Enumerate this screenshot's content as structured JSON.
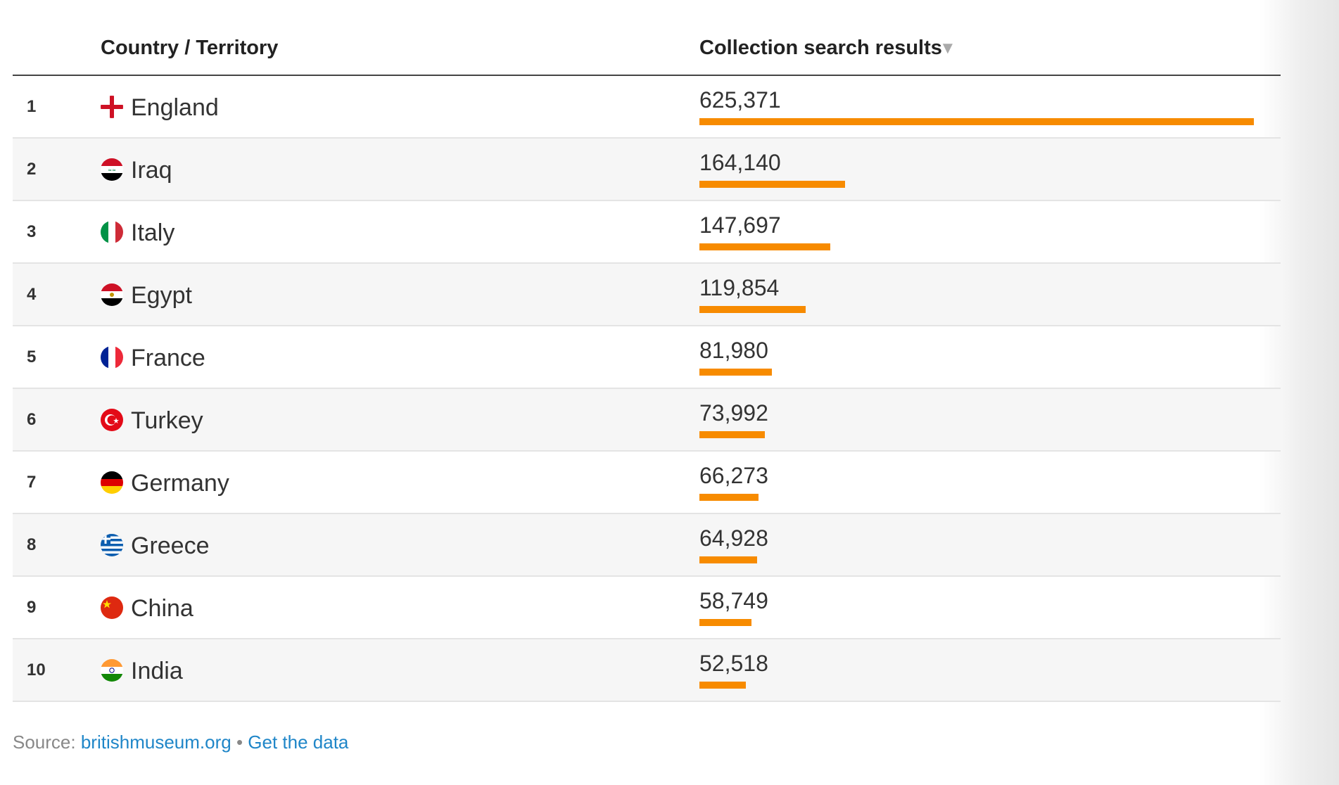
{
  "header": {
    "country_label": "Country / Territory",
    "results_label": "Collection search results",
    "sort_icon": "▼"
  },
  "colors": {
    "bar": "#f78b00",
    "link": "#1f86c8"
  },
  "chart_data": {
    "type": "table",
    "columns": [
      "Country / Territory",
      "Collection search results"
    ],
    "rows": [
      {
        "rank": "1",
        "country": "England",
        "flag": "england",
        "display": "625,371",
        "value": 625371
      },
      {
        "rank": "2",
        "country": "Iraq",
        "flag": "iraq",
        "display": "164,140",
        "value": 164140
      },
      {
        "rank": "3",
        "country": "Italy",
        "flag": "italy",
        "display": "147,697",
        "value": 147697
      },
      {
        "rank": "4",
        "country": "Egypt",
        "flag": "egypt",
        "display": "119,854",
        "value": 119854
      },
      {
        "rank": "5",
        "country": "France",
        "flag": "france",
        "display": "81,980",
        "value": 81980
      },
      {
        "rank": "6",
        "country": "Turkey",
        "flag": "turkey",
        "display": "73,992",
        "value": 73992
      },
      {
        "rank": "7",
        "country": "Germany",
        "flag": "germany",
        "display": "66,273",
        "value": 66273
      },
      {
        "rank": "8",
        "country": "Greece",
        "flag": "greece",
        "display": "64,928",
        "value": 64928
      },
      {
        "rank": "9",
        "country": "China",
        "flag": "china",
        "display": "58,749",
        "value": 58749
      },
      {
        "rank": "10",
        "country": "India",
        "flag": "india",
        "display": "52,518",
        "value": 52518
      }
    ]
  },
  "footer": {
    "source_label": "Source:",
    "source_link": "britishmuseum.org",
    "separator": "•",
    "data_link": "Get the data"
  }
}
